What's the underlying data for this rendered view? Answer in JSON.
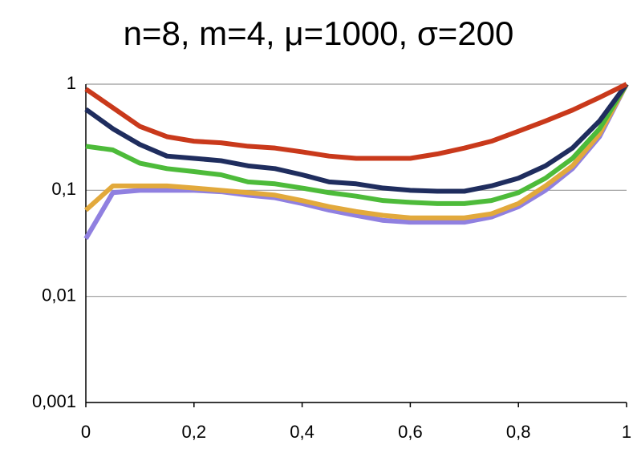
{
  "chart_data": {
    "type": "line",
    "title": "n=8, m=4, μ=1000, σ=200",
    "x": [
      0,
      0.05,
      0.1,
      0.15,
      0.2,
      0.25,
      0.3,
      0.35,
      0.4,
      0.45,
      0.5,
      0.55,
      0.6,
      0.65,
      0.7,
      0.75,
      0.8,
      0.85,
      0.9,
      0.95,
      1
    ],
    "series": [
      {
        "color": "#9080e0",
        "values": [
          0.035,
          0.095,
          0.1,
          0.1,
          0.1,
          0.097,
          0.09,
          0.085,
          0.075,
          0.065,
          0.058,
          0.052,
          0.05,
          0.05,
          0.05,
          0.056,
          0.07,
          0.1,
          0.16,
          0.32,
          1
        ]
      },
      {
        "color": "#e2a93c",
        "values": [
          0.065,
          0.11,
          0.11,
          0.11,
          0.105,
          0.1,
          0.095,
          0.09,
          0.08,
          0.07,
          0.063,
          0.058,
          0.055,
          0.055,
          0.055,
          0.06,
          0.075,
          0.11,
          0.17,
          0.34,
          1
        ]
      },
      {
        "color": "#4dbb3a",
        "values": [
          0.26,
          0.24,
          0.18,
          0.16,
          0.15,
          0.14,
          0.12,
          0.115,
          0.105,
          0.095,
          0.088,
          0.08,
          0.077,
          0.075,
          0.075,
          0.08,
          0.095,
          0.13,
          0.2,
          0.38,
          1
        ]
      },
      {
        "color": "#1f2d5e",
        "values": [
          0.58,
          0.38,
          0.27,
          0.21,
          0.2,
          0.19,
          0.17,
          0.16,
          0.14,
          0.12,
          0.115,
          0.105,
          0.1,
          0.098,
          0.098,
          0.11,
          0.13,
          0.17,
          0.25,
          0.45,
          1
        ]
      },
      {
        "color": "#c9391b",
        "values": [
          0.9,
          0.6,
          0.4,
          0.32,
          0.29,
          0.28,
          0.26,
          0.25,
          0.23,
          0.21,
          0.2,
          0.2,
          0.2,
          0.22,
          0.25,
          0.29,
          0.36,
          0.45,
          0.57,
          0.75,
          1
        ]
      }
    ],
    "xlim": [
      0,
      1
    ],
    "xticks": [
      0,
      {
        "value": 0.2,
        "label": "0,2"
      },
      {
        "value": 0.4,
        "label": "0,4"
      },
      {
        "value": 0.6,
        "label": "0,6"
      },
      {
        "value": 0.8,
        "label": "0,8"
      },
      1
    ],
    "ylim": [
      0.001,
      1
    ],
    "log_y": true,
    "yticks": [
      {
        "value": 0.001,
        "label": "0,001"
      },
      {
        "value": 0.01,
        "label": "0,01"
      },
      {
        "value": 0.1,
        "label": "0,1"
      },
      1
    ],
    "grid": true
  }
}
